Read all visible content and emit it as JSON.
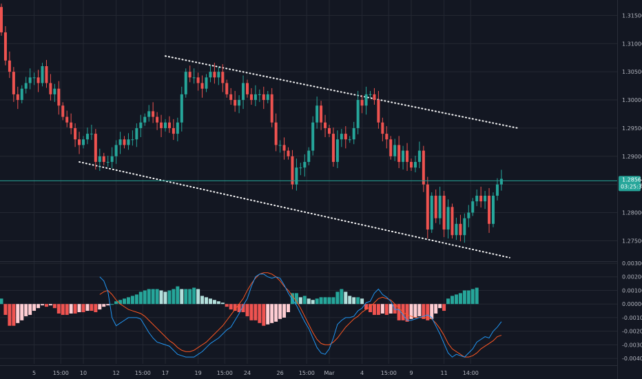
{
  "colors": {
    "background": "#131722",
    "grid": "#242833",
    "up": "#26a69a",
    "down": "#ef5350",
    "hist_up_strong": "#26a69a",
    "hist_up_weak": "#b2dfdb",
    "hist_down_strong": "#ef5350",
    "hist_down_weak": "#ffcdd2",
    "macd_line": "#2196f3",
    "signal_line": "#ff5722",
    "trendline": "#ffffff",
    "price_line": "#26a69a",
    "axis_text": "#b2b5be"
  },
  "chart_data": [
    {
      "type": "candlestick",
      "panel": "price",
      "y_range": [
        1.2715,
        1.3175
      ],
      "y_ticks": [
        "1.31500",
        "1.31000",
        "1.30500",
        "1.30000",
        "1.29500",
        "1.29000",
        "1.28500",
        "1.28000",
        "1.27500"
      ],
      "last_price": "1.28564",
      "countdown": "03:25:31",
      "x_ticks": [
        "5",
        "15:00",
        "10",
        "12",
        "15:00",
        "17",
        "19",
        "15:00",
        "24",
        "26",
        "15:00",
        "Mar",
        "4",
        "15:00",
        "9",
        "11",
        "14:00"
      ],
      "x_tick_positions": [
        8,
        14.5,
        20,
        28,
        34.5,
        40,
        48,
        54.5,
        60,
        68,
        74.5,
        80,
        88,
        94.5,
        100,
        108,
        114.5
      ],
      "candle_closes": [
        1.312,
        1.307,
        1.305,
        1.301,
        1.3,
        1.302,
        1.303,
        1.304,
        1.304,
        1.303,
        1.306,
        1.303,
        1.301,
        1.302,
        1.299,
        1.297,
        1.296,
        1.295,
        1.293,
        1.292,
        1.293,
        1.294,
        1.294,
        1.289,
        1.29,
        1.289,
        1.289,
        1.29,
        1.292,
        1.293,
        1.292,
        1.293,
        1.293,
        1.295,
        1.296,
        1.297,
        1.298,
        1.297,
        1.296,
        1.295,
        1.296,
        1.295,
        1.294,
        1.296,
        1.301,
        1.305,
        1.304,
        1.304,
        1.303,
        1.302,
        1.304,
        1.305,
        1.304,
        1.305,
        1.303,
        1.301,
        1.3,
        1.299,
        1.3,
        1.303,
        1.301,
        1.3,
        1.301,
        1.301,
        1.3,
        1.301,
        1.296,
        1.292,
        1.292,
        1.291,
        1.29,
        1.285,
        1.288,
        1.288,
        1.289,
        1.291,
        1.296,
        1.299,
        1.296,
        1.295,
        1.294,
        1.289,
        1.293,
        1.294,
        1.293,
        1.293,
        1.295,
        1.3,
        1.299,
        1.301,
        1.301,
        1.3,
        1.296,
        1.294,
        1.293,
        1.29,
        1.292,
        1.289,
        1.291,
        1.289,
        1.288,
        1.289,
        1.291,
        1.285,
        1.277,
        1.283,
        1.279,
        1.283,
        1.277,
        1.281,
        1.276,
        1.278,
        1.276,
        1.279,
        1.28,
        1.282,
        1.283,
        1.282,
        1.283,
        1.278,
        1.283,
        1.285,
        1.286
      ]
    },
    {
      "type": "line",
      "panel": "price",
      "name": "upper-trendline",
      "x": [
        40,
        126
      ],
      "y": [
        1.3078,
        1.295
      ]
    },
    {
      "type": "line",
      "panel": "price",
      "name": "lower-trendline",
      "x": [
        19,
        124
      ],
      "y": [
        1.289,
        1.272
      ]
    },
    {
      "type": "macd",
      "panel": "indicator",
      "y_range": [
        -0.0044,
        0.003
      ],
      "y_ticks": [
        "0.00300",
        "0.00200",
        "0.00100",
        "0.00000",
        "-0.00100",
        "-0.00200",
        "-0.00300",
        "-0.00400"
      ],
      "histogram": [
        0.0004,
        -0.0008,
        -0.0016,
        -0.0016,
        -0.0014,
        -0.0012,
        -0.0009,
        -0.0008,
        -0.0005,
        -0.0003,
        -0.0001,
        -0.0002,
        -0.0001,
        -0.0003,
        -0.0007,
        -0.0008,
        -0.0008,
        -0.0007,
        -0.0007,
        -0.0006,
        -0.0006,
        -0.0005,
        -0.0005,
        -0.0006,
        -0.0004,
        -0.0002,
        -0.0001,
        -0.0,
        0.0002,
        0.0003,
        0.0004,
        0.0005,
        0.0006,
        0.0007,
        0.0009,
        0.001,
        0.0011,
        0.0011,
        0.0011,
        0.001,
        0.0009,
        0.001,
        0.0011,
        0.0013,
        0.0011,
        0.0011,
        0.0011,
        0.0012,
        0.0011,
        0.0006,
        0.0005,
        0.0004,
        0.0003,
        0.0002,
        0.0001,
        -0.0002,
        -0.0004,
        -0.0005,
        -0.0006,
        -0.0006,
        -0.0009,
        -0.0012,
        -0.0012,
        -0.0014,
        -0.0016,
        -0.0015,
        -0.0014,
        -0.0013,
        -0.0011,
        -0.001,
        -0.0006,
        0.0008,
        0.0008,
        0.0005,
        0.0006,
        0.0004,
        0.0003,
        0.0004,
        0.0005,
        0.0005,
        0.0005,
        0.0005,
        0.0009,
        0.0011,
        0.0009,
        0.0006,
        0.0005,
        0.0005,
        0.0004,
        -0.0004,
        -0.0006,
        -0.0008,
        -0.0008,
        -0.0007,
        -0.0008,
        -0.0007,
        -0.0007,
        -0.0012,
        -0.0012,
        -0.0013,
        -0.0011,
        -0.001,
        -0.0009,
        -0.0011,
        -0.0012,
        -0.0011,
        -0.0007,
        -0.0003,
        -0.0005,
        0.0004,
        0.0006,
        0.0007,
        0.0008,
        0.001,
        0.001,
        0.0011,
        0.0012
      ],
      "macd": [
        0.002,
        0.0017,
        0.0009,
        -0.001,
        -0.0016,
        -0.0014,
        -0.0012,
        -0.001,
        -0.001,
        -0.001,
        -0.0011,
        -0.0016,
        -0.0021,
        -0.0025,
        -0.0028,
        -0.0029,
        -0.003,
        -0.0031,
        -0.0034,
        -0.0037,
        -0.0038,
        -0.0039,
        -0.0039,
        -0.0039,
        -0.0037,
        -0.0035,
        -0.0032,
        -0.0029,
        -0.0027,
        -0.0025,
        -0.0022,
        -0.0019,
        -0.0017,
        -0.0012,
        -0.0007,
        -0.0001,
        0.0004,
        0.0013,
        0.002,
        0.0022,
        0.0022,
        0.002,
        0.0019,
        0.002,
        0.0019,
        0.0014,
        0.0008,
        0.0003,
        -0.0001,
        -0.0007,
        -0.0013,
        -0.0018,
        -0.0025,
        -0.0032,
        -0.0036,
        -0.0037,
        -0.0033,
        -0.0025,
        -0.0015,
        -0.0012,
        -0.001,
        -0.001,
        -0.0009,
        -0.0005,
        -0.0003,
        0.0001,
        0.0002,
        0.0008,
        0.0011,
        0.0007,
        0.0005,
        0.0002,
        -0.0004,
        -0.0004,
        -0.0008,
        -0.0012,
        -0.0012,
        -0.0011,
        -0.001,
        -0.0009,
        -0.0008,
        -0.001,
        -0.0016,
        -0.0022,
        -0.0029,
        -0.0036,
        -0.0039,
        -0.0037,
        -0.0038,
        -0.0039,
        -0.0036,
        -0.0033,
        -0.0028,
        -0.0026,
        -0.0024,
        -0.0025,
        -0.002,
        -0.0017,
        -0.0013
      ],
      "signal": [
        0.0007,
        0.0009,
        0.001,
        0.0007,
        0.0003,
        0.0,
        -0.0002,
        -0.0004,
        -0.0005,
        -0.0006,
        -0.0007,
        -0.0009,
        -0.0012,
        -0.0015,
        -0.0018,
        -0.0021,
        -0.0024,
        -0.0027,
        -0.0029,
        -0.0032,
        -0.0034,
        -0.0035,
        -0.0035,
        -0.0034,
        -0.0032,
        -0.003,
        -0.0028,
        -0.0025,
        -0.0022,
        -0.0019,
        -0.0016,
        -0.0012,
        -0.0008,
        -0.0004,
        0.0,
        0.0004,
        0.001,
        0.0015,
        0.0019,
        0.0022,
        0.0023,
        0.0023,
        0.0022,
        0.002,
        0.0017,
        0.0013,
        0.001,
        0.0006,
        0.0002,
        -0.0003,
        -0.0009,
        -0.0015,
        -0.0021,
        -0.0026,
        -0.0029,
        -0.003,
        -0.003,
        -0.0028,
        -0.0025,
        -0.0021,
        -0.0017,
        -0.0014,
        -0.0011,
        -0.0009,
        -0.0006,
        -0.0004,
        -0.0002,
        0.0001,
        0.0004,
        0.0005,
        0.0004,
        0.0003,
        0.0,
        -0.0003,
        -0.0006,
        -0.0008,
        -0.0009,
        -0.001,
        -0.001,
        -0.001,
        -0.001,
        -0.0011,
        -0.0014,
        -0.0018,
        -0.0023,
        -0.0029,
        -0.0033,
        -0.0035,
        -0.0037,
        -0.0039,
        -0.0039,
        -0.0038,
        -0.0036,
        -0.0033,
        -0.0031,
        -0.0029,
        -0.0027,
        -0.0024,
        -0.0023
      ]
    }
  ]
}
